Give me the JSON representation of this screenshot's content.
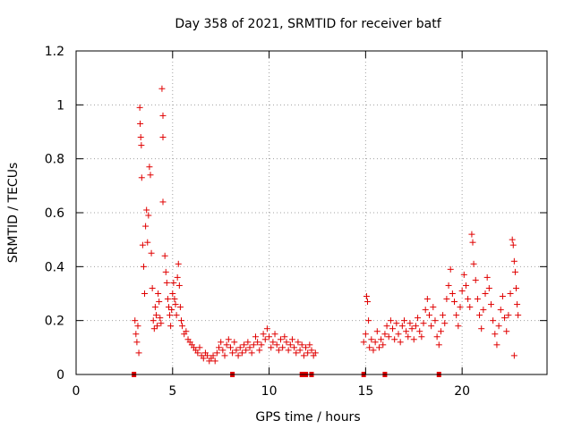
{
  "chart_data": {
    "type": "scatter",
    "title": "Day 358 of 2021, SRMTID for receiver batf",
    "xlabel": "GPS time / hours",
    "ylabel": "SRMTID / TECUs",
    "xlim": [
      0,
      24.4
    ],
    "ylim": [
      0,
      1.2
    ],
    "xticks": [
      0,
      5,
      10,
      15,
      20
    ],
    "xtick_labels": [
      "0",
      "5",
      "10",
      "15",
      "20"
    ],
    "yticks": [
      0,
      0.2,
      0.4,
      0.6,
      0.8,
      1.0,
      1.2
    ],
    "ytick_labels": [
      "0",
      "0.2",
      "0.4",
      "0.6",
      "0.8",
      "1",
      "1.2"
    ],
    "grid": true,
    "marker": "+",
    "color": "#e00000",
    "series": [
      {
        "name": "SRMTID",
        "points": [
          [
            3.05,
            0.2
          ],
          [
            3.1,
            0.15
          ],
          [
            3.15,
            0.12
          ],
          [
            3.2,
            0.18
          ],
          [
            3.25,
            0.08
          ],
          [
            3.3,
            0.99
          ],
          [
            3.32,
            0.93
          ],
          [
            3.35,
            0.88
          ],
          [
            3.38,
            0.85
          ],
          [
            3.4,
            0.73
          ],
          [
            3.45,
            0.48
          ],
          [
            3.5,
            0.4
          ],
          [
            3.55,
            0.3
          ],
          [
            3.6,
            0.55
          ],
          [
            3.65,
            0.61
          ],
          [
            3.7,
            0.49
          ],
          [
            3.75,
            0.59
          ],
          [
            3.8,
            0.77
          ],
          [
            3.85,
            0.74
          ],
          [
            3.9,
            0.45
          ],
          [
            3.95,
            0.32
          ],
          [
            4.0,
            0.2
          ],
          [
            4.05,
            0.17
          ],
          [
            4.1,
            0.25
          ],
          [
            4.15,
            0.22
          ],
          [
            4.2,
            0.18
          ],
          [
            4.25,
            0.3
          ],
          [
            4.3,
            0.27
          ],
          [
            4.35,
            0.21
          ],
          [
            4.4,
            0.19
          ],
          [
            4.45,
            1.06
          ],
          [
            4.5,
            0.96
          ],
          [
            4.5,
            0.88
          ],
          [
            4.5,
            0.64
          ],
          [
            4.6,
            0.44
          ],
          [
            4.65,
            0.38
          ],
          [
            4.7,
            0.34
          ],
          [
            4.75,
            0.28
          ],
          [
            4.8,
            0.25
          ],
          [
            4.85,
            0.22
          ],
          [
            4.9,
            0.18
          ],
          [
            4.95,
            0.24
          ],
          [
            5.0,
            0.3
          ],
          [
            5.05,
            0.34
          ],
          [
            5.1,
            0.28
          ],
          [
            5.15,
            0.26
          ],
          [
            5.2,
            0.22
          ],
          [
            5.25,
            0.36
          ],
          [
            5.3,
            0.41
          ],
          [
            5.35,
            0.33
          ],
          [
            5.4,
            0.25
          ],
          [
            5.45,
            0.2
          ],
          [
            5.5,
            0.18
          ],
          [
            5.6,
            0.15
          ],
          [
            5.7,
            0.16
          ],
          [
            5.8,
            0.13
          ],
          [
            5.9,
            0.12
          ],
          [
            6.0,
            0.11
          ],
          [
            6.1,
            0.1
          ],
          [
            6.2,
            0.09
          ],
          [
            6.3,
            0.08
          ],
          [
            6.4,
            0.1
          ],
          [
            6.5,
            0.07
          ],
          [
            6.6,
            0.06
          ],
          [
            6.7,
            0.08
          ],
          [
            6.8,
            0.07
          ],
          [
            6.9,
            0.05
          ],
          [
            7.0,
            0.06
          ],
          [
            7.1,
            0.07
          ],
          [
            7.2,
            0.05
          ],
          [
            7.3,
            0.08
          ],
          [
            7.4,
            0.1
          ],
          [
            7.5,
            0.12
          ],
          [
            7.6,
            0.09
          ],
          [
            7.7,
            0.07
          ],
          [
            7.8,
            0.11
          ],
          [
            7.9,
            0.13
          ],
          [
            8.0,
            0.1
          ],
          [
            8.1,
            0.08
          ],
          [
            8.2,
            0.12
          ],
          [
            8.3,
            0.09
          ],
          [
            8.4,
            0.07
          ],
          [
            8.5,
            0.1
          ],
          [
            8.6,
            0.08
          ],
          [
            8.7,
            0.11
          ],
          [
            8.8,
            0.09
          ],
          [
            8.9,
            0.12
          ],
          [
            9.0,
            0.1
          ],
          [
            9.1,
            0.08
          ],
          [
            9.2,
            0.11
          ],
          [
            9.3,
            0.14
          ],
          [
            9.4,
            0.12
          ],
          [
            9.5,
            0.09
          ],
          [
            9.6,
            0.11
          ],
          [
            9.7,
            0.15
          ],
          [
            9.8,
            0.13
          ],
          [
            9.9,
            0.17
          ],
          [
            10.0,
            0.14
          ],
          [
            10.1,
            0.1
          ],
          [
            10.2,
            0.12
          ],
          [
            10.3,
            0.15
          ],
          [
            10.4,
            0.11
          ],
          [
            10.5,
            0.09
          ],
          [
            10.6,
            0.13
          ],
          [
            10.7,
            0.1
          ],
          [
            10.8,
            0.14
          ],
          [
            10.9,
            0.12
          ],
          [
            11.0,
            0.09
          ],
          [
            11.1,
            0.11
          ],
          [
            11.2,
            0.13
          ],
          [
            11.3,
            0.1
          ],
          [
            11.4,
            0.08
          ],
          [
            11.5,
            0.12
          ],
          [
            11.6,
            0.09
          ],
          [
            11.7,
            0.11
          ],
          [
            11.8,
            0.07
          ],
          [
            11.9,
            0.1
          ],
          [
            12.0,
            0.08
          ],
          [
            12.1,
            0.11
          ],
          [
            12.2,
            0.09
          ],
          [
            12.3,
            0.07
          ],
          [
            12.4,
            0.08
          ],
          [
            14.9,
            0.12
          ],
          [
            15.0,
            0.15
          ],
          [
            15.05,
            0.29
          ],
          [
            15.1,
            0.27
          ],
          [
            15.15,
            0.2
          ],
          [
            15.2,
            0.1
          ],
          [
            15.3,
            0.13
          ],
          [
            15.4,
            0.09
          ],
          [
            15.5,
            0.12
          ],
          [
            15.6,
            0.16
          ],
          [
            15.7,
            0.1
          ],
          [
            15.8,
            0.13
          ],
          [
            15.9,
            0.11
          ],
          [
            16.0,
            0.15
          ],
          [
            16.1,
            0.18
          ],
          [
            16.2,
            0.14
          ],
          [
            16.3,
            0.2
          ],
          [
            16.4,
            0.17
          ],
          [
            16.5,
            0.13
          ],
          [
            16.6,
            0.19
          ],
          [
            16.7,
            0.15
          ],
          [
            16.8,
            0.12
          ],
          [
            16.9,
            0.18
          ],
          [
            17.0,
            0.2
          ],
          [
            17.1,
            0.16
          ],
          [
            17.2,
            0.14
          ],
          [
            17.3,
            0.19
          ],
          [
            17.4,
            0.17
          ],
          [
            17.5,
            0.13
          ],
          [
            17.6,
            0.18
          ],
          [
            17.7,
            0.21
          ],
          [
            17.8,
            0.16
          ],
          [
            17.9,
            0.14
          ],
          [
            18.0,
            0.19
          ],
          [
            18.1,
            0.24
          ],
          [
            18.2,
            0.28
          ],
          [
            18.3,
            0.22
          ],
          [
            18.4,
            0.18
          ],
          [
            18.5,
            0.25
          ],
          [
            18.6,
            0.2
          ],
          [
            18.7,
            0.14
          ],
          [
            18.8,
            0.11
          ],
          [
            18.9,
            0.16
          ],
          [
            19.0,
            0.22
          ],
          [
            19.1,
            0.19
          ],
          [
            19.2,
            0.28
          ],
          [
            19.3,
            0.33
          ],
          [
            19.4,
            0.39
          ],
          [
            19.5,
            0.3
          ],
          [
            19.6,
            0.27
          ],
          [
            19.7,
            0.22
          ],
          [
            19.8,
            0.18
          ],
          [
            19.9,
            0.25
          ],
          [
            20.0,
            0.31
          ],
          [
            20.1,
            0.37
          ],
          [
            20.2,
            0.33
          ],
          [
            20.3,
            0.28
          ],
          [
            20.4,
            0.25
          ],
          [
            20.5,
            0.52
          ],
          [
            20.55,
            0.49
          ],
          [
            20.6,
            0.41
          ],
          [
            20.7,
            0.35
          ],
          [
            20.8,
            0.28
          ],
          [
            20.9,
            0.22
          ],
          [
            21.0,
            0.17
          ],
          [
            21.1,
            0.24
          ],
          [
            21.2,
            0.3
          ],
          [
            21.3,
            0.36
          ],
          [
            21.4,
            0.32
          ],
          [
            21.5,
            0.26
          ],
          [
            21.6,
            0.2
          ],
          [
            21.7,
            0.15
          ],
          [
            21.8,
            0.11
          ],
          [
            21.9,
            0.18
          ],
          [
            22.0,
            0.24
          ],
          [
            22.1,
            0.29
          ],
          [
            22.2,
            0.21
          ],
          [
            22.3,
            0.16
          ],
          [
            22.4,
            0.22
          ],
          [
            22.5,
            0.3
          ],
          [
            22.6,
            0.5
          ],
          [
            22.65,
            0.48
          ],
          [
            22.7,
            0.42
          ],
          [
            22.75,
            0.38
          ],
          [
            22.8,
            0.32
          ],
          [
            22.85,
            0.26
          ],
          [
            22.9,
            0.22
          ],
          [
            22.7,
            0.07
          ]
        ]
      }
    ],
    "rug_x": [
      3.0,
      8.1,
      11.7,
      11.9,
      12.2,
      14.9,
      16.0,
      18.8
    ]
  }
}
